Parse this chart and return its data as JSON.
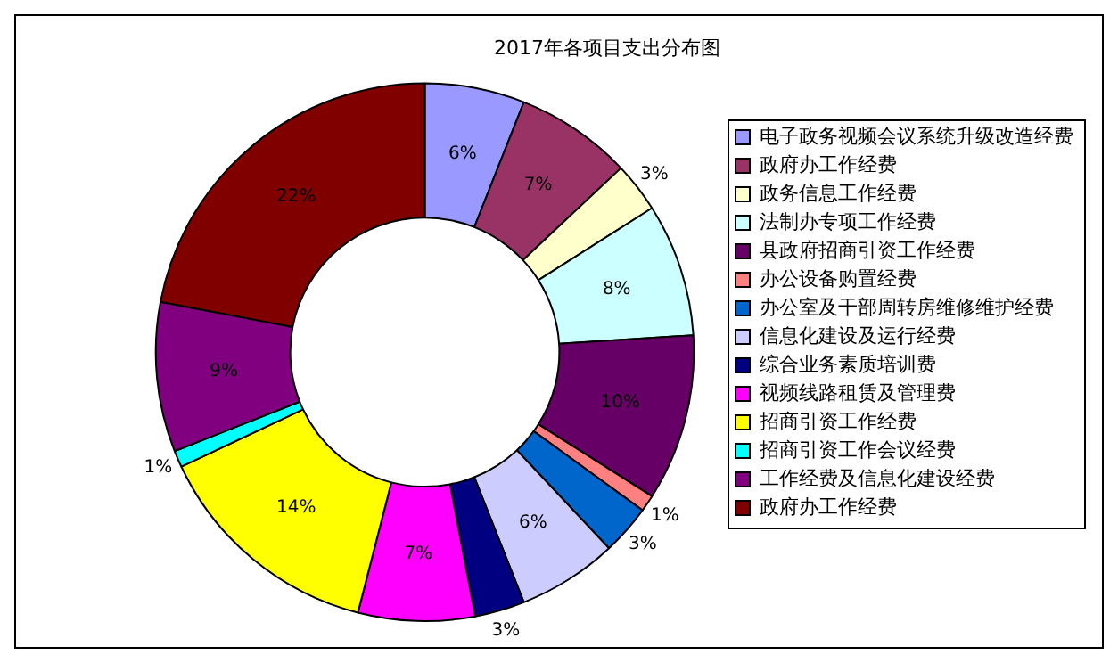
{
  "chart_data": {
    "type": "donut",
    "title": "2017年各项目支出分布图",
    "categories": [
      "电子政务视频会议系统升级改造经费",
      "政府办工作经费",
      "政务信息工作经费",
      "法制办专项工作经费",
      "县政府招商引资工作经费",
      "办公设备购置经费",
      "办公室及干部周转房维修维护经费",
      "信息化建设及运行经费",
      "综合业务素质培训费",
      "视频线路租赁及管理费",
      "招商引资工作经费",
      "招商引资工作会议经费",
      "工作经费及信息化建设经费",
      "政府办工作经费"
    ],
    "values": [
      6,
      7,
      3,
      8,
      10,
      1,
      3,
      6,
      3,
      7,
      14,
      1,
      9,
      22
    ],
    "colors": [
      "#9999ff",
      "#993366",
      "#ffffcc",
      "#ccffff",
      "#660066",
      "#ff8080",
      "#0066cc",
      "#ccccff",
      "#000080",
      "#ff00ff",
      "#ffff00",
      "#00ffff",
      "#800080",
      "#800000"
    ],
    "value_labels": [
      "6%",
      "7%",
      "3%",
      "8%",
      "10%",
      "1%",
      "3%",
      "6%",
      "3%",
      "7%",
      "14%",
      "1%",
      "9%",
      "22%"
    ],
    "legend": "right"
  }
}
